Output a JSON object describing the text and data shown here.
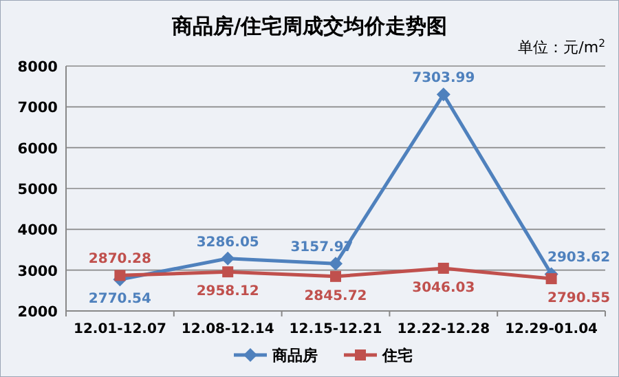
{
  "chart_data": {
    "type": "line",
    "title": "商品房/住宅周成交均价走势图",
    "annotations": [
      "单位：元/m$^{2}$"
    ],
    "categories": [
      "12.01-12.07",
      "12.08-12.14",
      "12.15-12.21",
      "12.22-12.28",
      "12.29-01.04"
    ],
    "series": [
      {
        "name": "商品房",
        "color": "#4f81bd",
        "marker": "diamond",
        "values": [
          2770.54,
          3286.05,
          3157.97,
          7303.99,
          2903.62
        ]
      },
      {
        "name": "住宅",
        "color": "#c0504d",
        "marker": "square",
        "values": [
          2870.28,
          2958.12,
          2845.72,
          3046.03,
          2790.55
        ]
      }
    ],
    "ylim": [
      2000,
      8000
    ],
    "yticks": [
      2000,
      3000,
      4000,
      5000,
      6000,
      7000,
      8000
    ],
    "grid": "y",
    "legend": "bottom",
    "data_labels": true
  }
}
